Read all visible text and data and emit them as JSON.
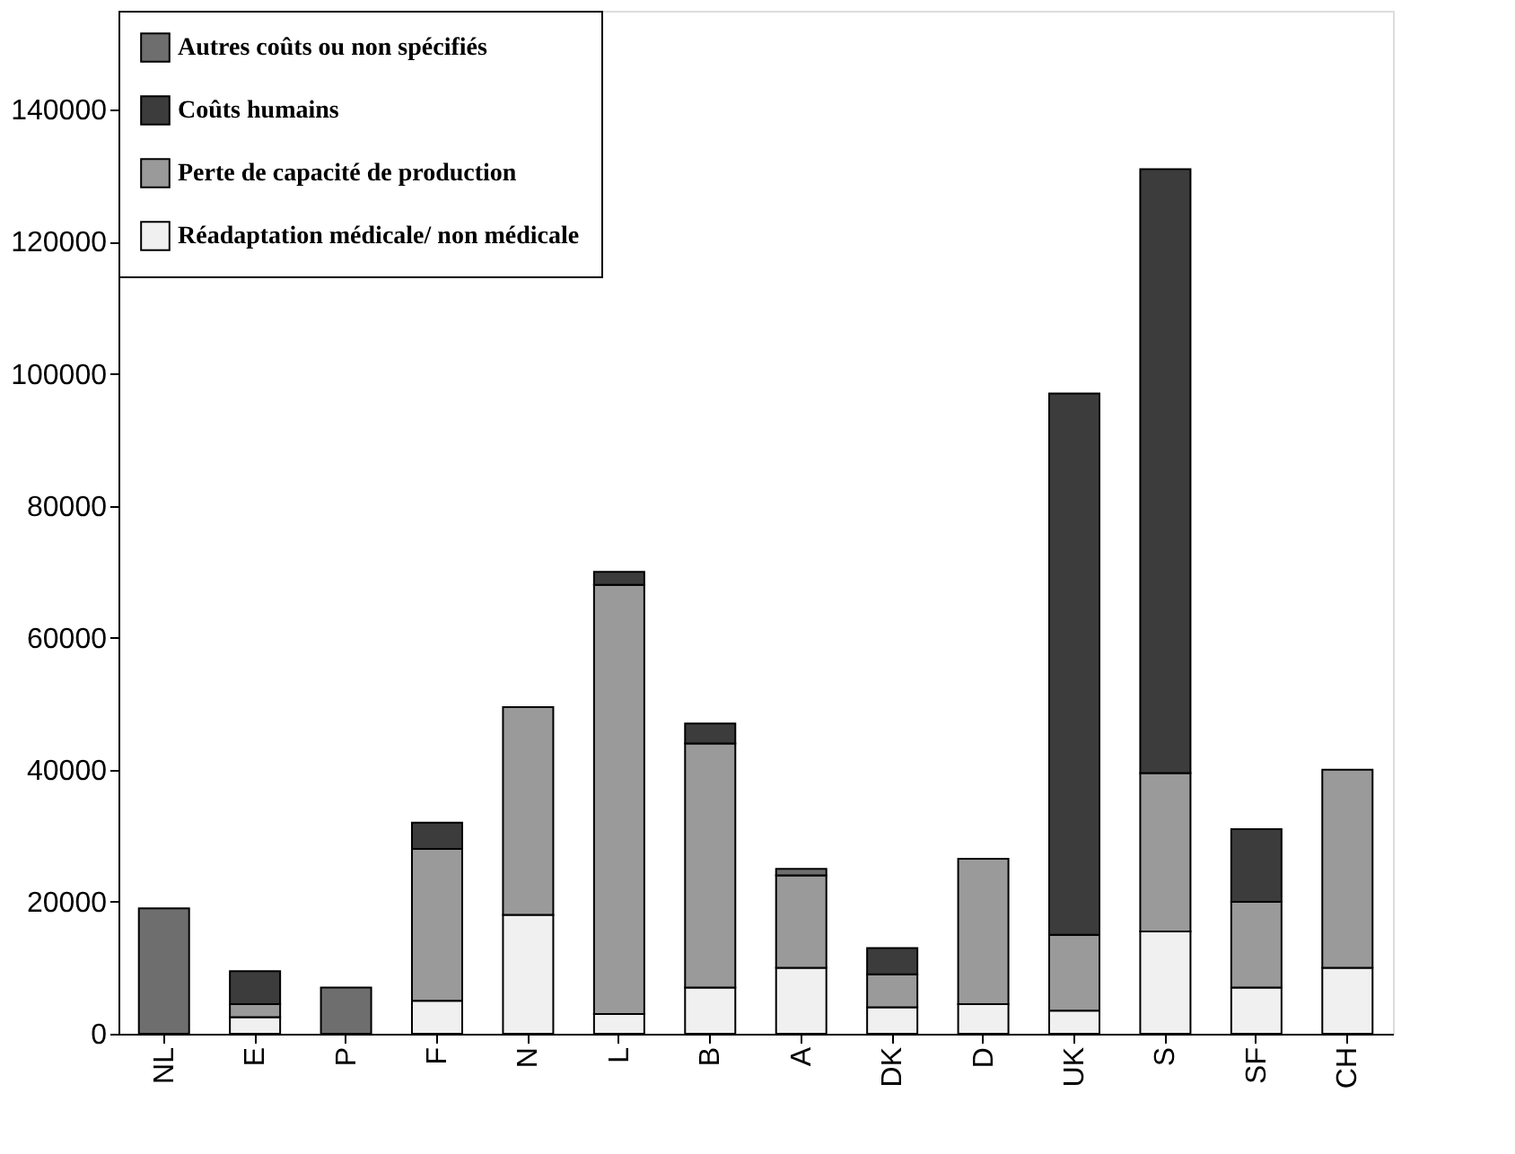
{
  "chart_data": {
    "type": "bar",
    "stacked": true,
    "categories": [
      "NL",
      "E",
      "P",
      "F",
      "N",
      "L",
      "B",
      "A",
      "DK",
      "D",
      "UK",
      "S",
      "SF",
      "CH"
    ],
    "series": [
      {
        "name": "Réadaptation médicale/ non médicale",
        "color": "#f0f0f0",
        "values": [
          null,
          2500,
          null,
          5000,
          18000,
          3000,
          7000,
          10000,
          4000,
          4500,
          3500,
          15500,
          7000,
          10000
        ]
      },
      {
        "name": "Perte de capacité de production",
        "color": "#9a9a9a",
        "values": [
          null,
          2000,
          null,
          23000,
          31500,
          65000,
          37000,
          14000,
          5000,
          22000,
          11500,
          24000,
          13000,
          30000
        ]
      },
      {
        "name": "Coûts humains",
        "color": "#3c3c3c",
        "values": [
          null,
          5000,
          null,
          4000,
          null,
          2000,
          3000,
          null,
          4000,
          null,
          82000,
          91500,
          11000,
          null
        ]
      },
      {
        "name": "Autres coûts ou non spécifiés",
        "color": "#6e6e6e",
        "values": [
          19000,
          null,
          7000,
          null,
          null,
          null,
          null,
          1000,
          null,
          null,
          null,
          null,
          null,
          null
        ]
      }
    ],
    "ylim": [
      0,
      155000
    ],
    "yticks": [
      0,
      20000,
      40000,
      60000,
      80000,
      100000,
      120000,
      140000
    ],
    "grid": false,
    "legend": "top left"
  }
}
